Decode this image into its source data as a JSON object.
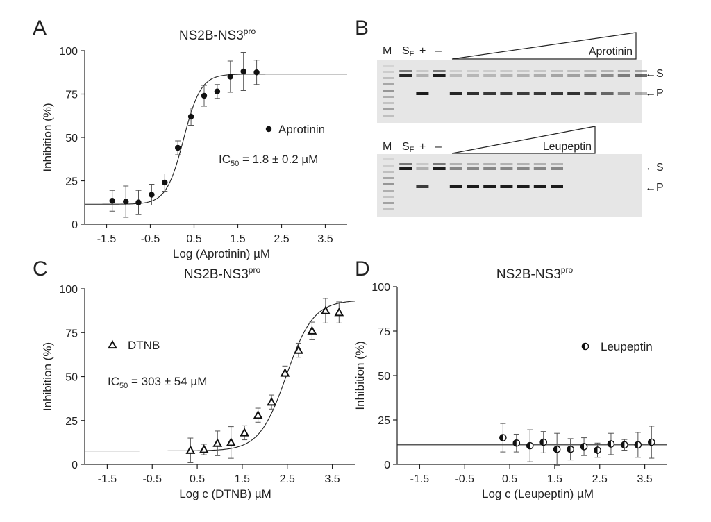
{
  "figure": {
    "panels": {
      "A": {
        "letter": "A"
      },
      "B": {
        "letter": "B"
      },
      "C": {
        "letter": "C"
      },
      "D": {
        "letter": "D"
      }
    }
  },
  "chart_data": [
    {
      "panel": "A",
      "type": "scatter",
      "title": "NS2B-NS3",
      "title_sup": "pro",
      "xlabel": "Log (Aprotinin) µM",
      "ylabel": "Inhibition (%)",
      "xlim": [
        -2,
        4
      ],
      "ylim": [
        0,
        100
      ],
      "xticks": [
        -1.5,
        -0.5,
        0.5,
        1.5,
        2.5,
        3.5
      ],
      "xtick_labels": [
        "-1.5",
        "-0.5",
        "0.5",
        "1.5",
        "2.5",
        "3.5"
      ],
      "yticks": [
        0,
        25,
        50,
        75,
        100
      ],
      "ytick_labels": [
        "0",
        "25",
        "50",
        "75",
        "100"
      ],
      "marker": "filled-circle",
      "fit": {
        "bottom": 11.5,
        "top": 86.5,
        "logIC50": 0.26,
        "hill": 2.2,
        "x_from": -2,
        "x_to": 4
      },
      "series": [
        {
          "name": "Aprotinin",
          "x": [
            -1.37,
            -1.06,
            -0.77,
            -0.47,
            -0.17,
            0.13,
            0.43,
            0.73,
            1.03,
            1.33,
            1.63,
            1.93
          ],
          "y": [
            13.5,
            13,
            12.5,
            17,
            24,
            44,
            62,
            74,
            76.5,
            85,
            88,
            87.5
          ],
          "err": [
            6,
            9,
            7,
            6,
            5,
            4,
            5,
            6,
            4,
            9,
            11,
            7
          ]
        }
      ],
      "legend": {
        "label": "Aprotinin",
        "placement": "right"
      },
      "annotation": {
        "prefix": "IC",
        "sub": "50",
        "suffix": " = 1.8 ± 0.2 µM"
      }
    },
    {
      "panel": "C",
      "type": "scatter",
      "title": "NS2B-NS3",
      "title_sup": "pro",
      "xlabel": "Log c (DTNB) µM",
      "ylabel": "Inhibition (%)",
      "xlim": [
        -2,
        4
      ],
      "ylim": [
        0,
        100
      ],
      "xticks": [
        -1.5,
        -0.5,
        0.5,
        1.5,
        2.5,
        3.5
      ],
      "xtick_labels": [
        "-1.5",
        "-0.5",
        "0.5",
        "1.5",
        "2.5",
        "3.5"
      ],
      "yticks": [
        0,
        25,
        50,
        75,
        100
      ],
      "ytick_labels": [
        "0",
        "25",
        "50",
        "75",
        "100"
      ],
      "marker": "open-triangle",
      "fit": {
        "bottom": 7.7,
        "top": 93.5,
        "logIC50": 2.48,
        "hill": 1.45,
        "x_from": -2,
        "x_to": 4
      },
      "series": [
        {
          "name": "DTNB",
          "x": [
            0.35,
            0.65,
            0.95,
            1.25,
            1.55,
            1.85,
            2.15,
            2.45,
            2.75,
            3.05,
            3.35,
            3.65
          ],
          "y": [
            8,
            8.5,
            12,
            12.5,
            18,
            28,
            35.5,
            52,
            65,
            76,
            87.5,
            86.5
          ],
          "err": [
            7,
            3,
            7,
            9,
            4,
            4,
            4,
            4,
            4,
            5,
            7,
            6
          ]
        }
      ],
      "legend": {
        "label": "DTNB",
        "placement": "left"
      },
      "annotation": {
        "prefix": "IC",
        "sub": "50",
        "suffix": " = 303 ± 54 µM"
      }
    },
    {
      "panel": "D",
      "type": "scatter",
      "title": "NS2B-NS3",
      "title_sup": "pro",
      "xlabel": "Log c (Leupeptin) µM",
      "ylabel": "Inhibition (%)",
      "xlim": [
        -2,
        4
      ],
      "ylim": [
        0,
        100
      ],
      "xticks": [
        -1.5,
        -0.5,
        0.5,
        1.5,
        2.5,
        3.5
      ],
      "xtick_labels": [
        "-1.5",
        "-0.5",
        "0.5",
        "1.5",
        "2.5",
        "3.5"
      ],
      "yticks": [
        0,
        25,
        50,
        75,
        100
      ],
      "ytick_labels": [
        "0",
        "25",
        "50",
        "75",
        "100"
      ],
      "marker": "half-filled-circle",
      "fit": {
        "constant": 11,
        "x_from": -2,
        "x_to": 4
      },
      "series": [
        {
          "name": "Leupeptin",
          "x": [
            0.35,
            0.65,
            0.95,
            1.25,
            1.55,
            1.85,
            2.15,
            2.45,
            2.75,
            3.05,
            3.35,
            3.65
          ],
          "y": [
            15,
            12,
            10.5,
            12.5,
            8.5,
            8.5,
            10,
            8,
            11.5,
            11,
            11,
            12.5
          ],
          "err": [
            8,
            5,
            9,
            6,
            9,
            6,
            5,
            4,
            6,
            3,
            7,
            9
          ]
        }
      ],
      "legend": {
        "label": "Leupeptin",
        "placement": "top-right"
      }
    }
  ],
  "gels": [
    {
      "name": "aprotinin-gel",
      "lanes": {
        "marker": "M",
        "substrate": "S",
        "substrate_sub": "F",
        "plus": "+",
        "minus": "–"
      },
      "gradient_label": "Aprotinin",
      "band_labels": {
        "substrate": "←S",
        "product": "←P"
      },
      "lane_count": 16,
      "substrate_band": [
        0,
        0.9,
        0.25,
        0.95,
        0.2,
        0.22,
        0.22,
        0.24,
        0.25,
        0.27,
        0.3,
        0.33,
        0.36,
        0.42,
        0.5,
        0.6
      ],
      "product_band": [
        0,
        0,
        0.95,
        0,
        0.9,
        0.85,
        0.82,
        0.82,
        0.8,
        0.82,
        0.82,
        0.85,
        0.75,
        0.6,
        0.45,
        0.3
      ]
    },
    {
      "name": "leupeptin-gel",
      "lanes": {
        "marker": "M",
        "substrate": "S",
        "substrate_sub": "F",
        "plus": "+",
        "minus": "–"
      },
      "gradient_label": "Leupeptin",
      "band_labels": {
        "substrate": "←S",
        "product": "←P"
      },
      "lane_count": 11,
      "substrate_band": [
        0,
        0.95,
        0.25,
        0.95,
        0.45,
        0.45,
        0.45,
        0.45,
        0.45,
        0.45,
        0.45
      ],
      "product_band": [
        0,
        0,
        0.8,
        0,
        0.95,
        0.95,
        0.95,
        0.95,
        0.95,
        0.95,
        0.95
      ]
    }
  ]
}
